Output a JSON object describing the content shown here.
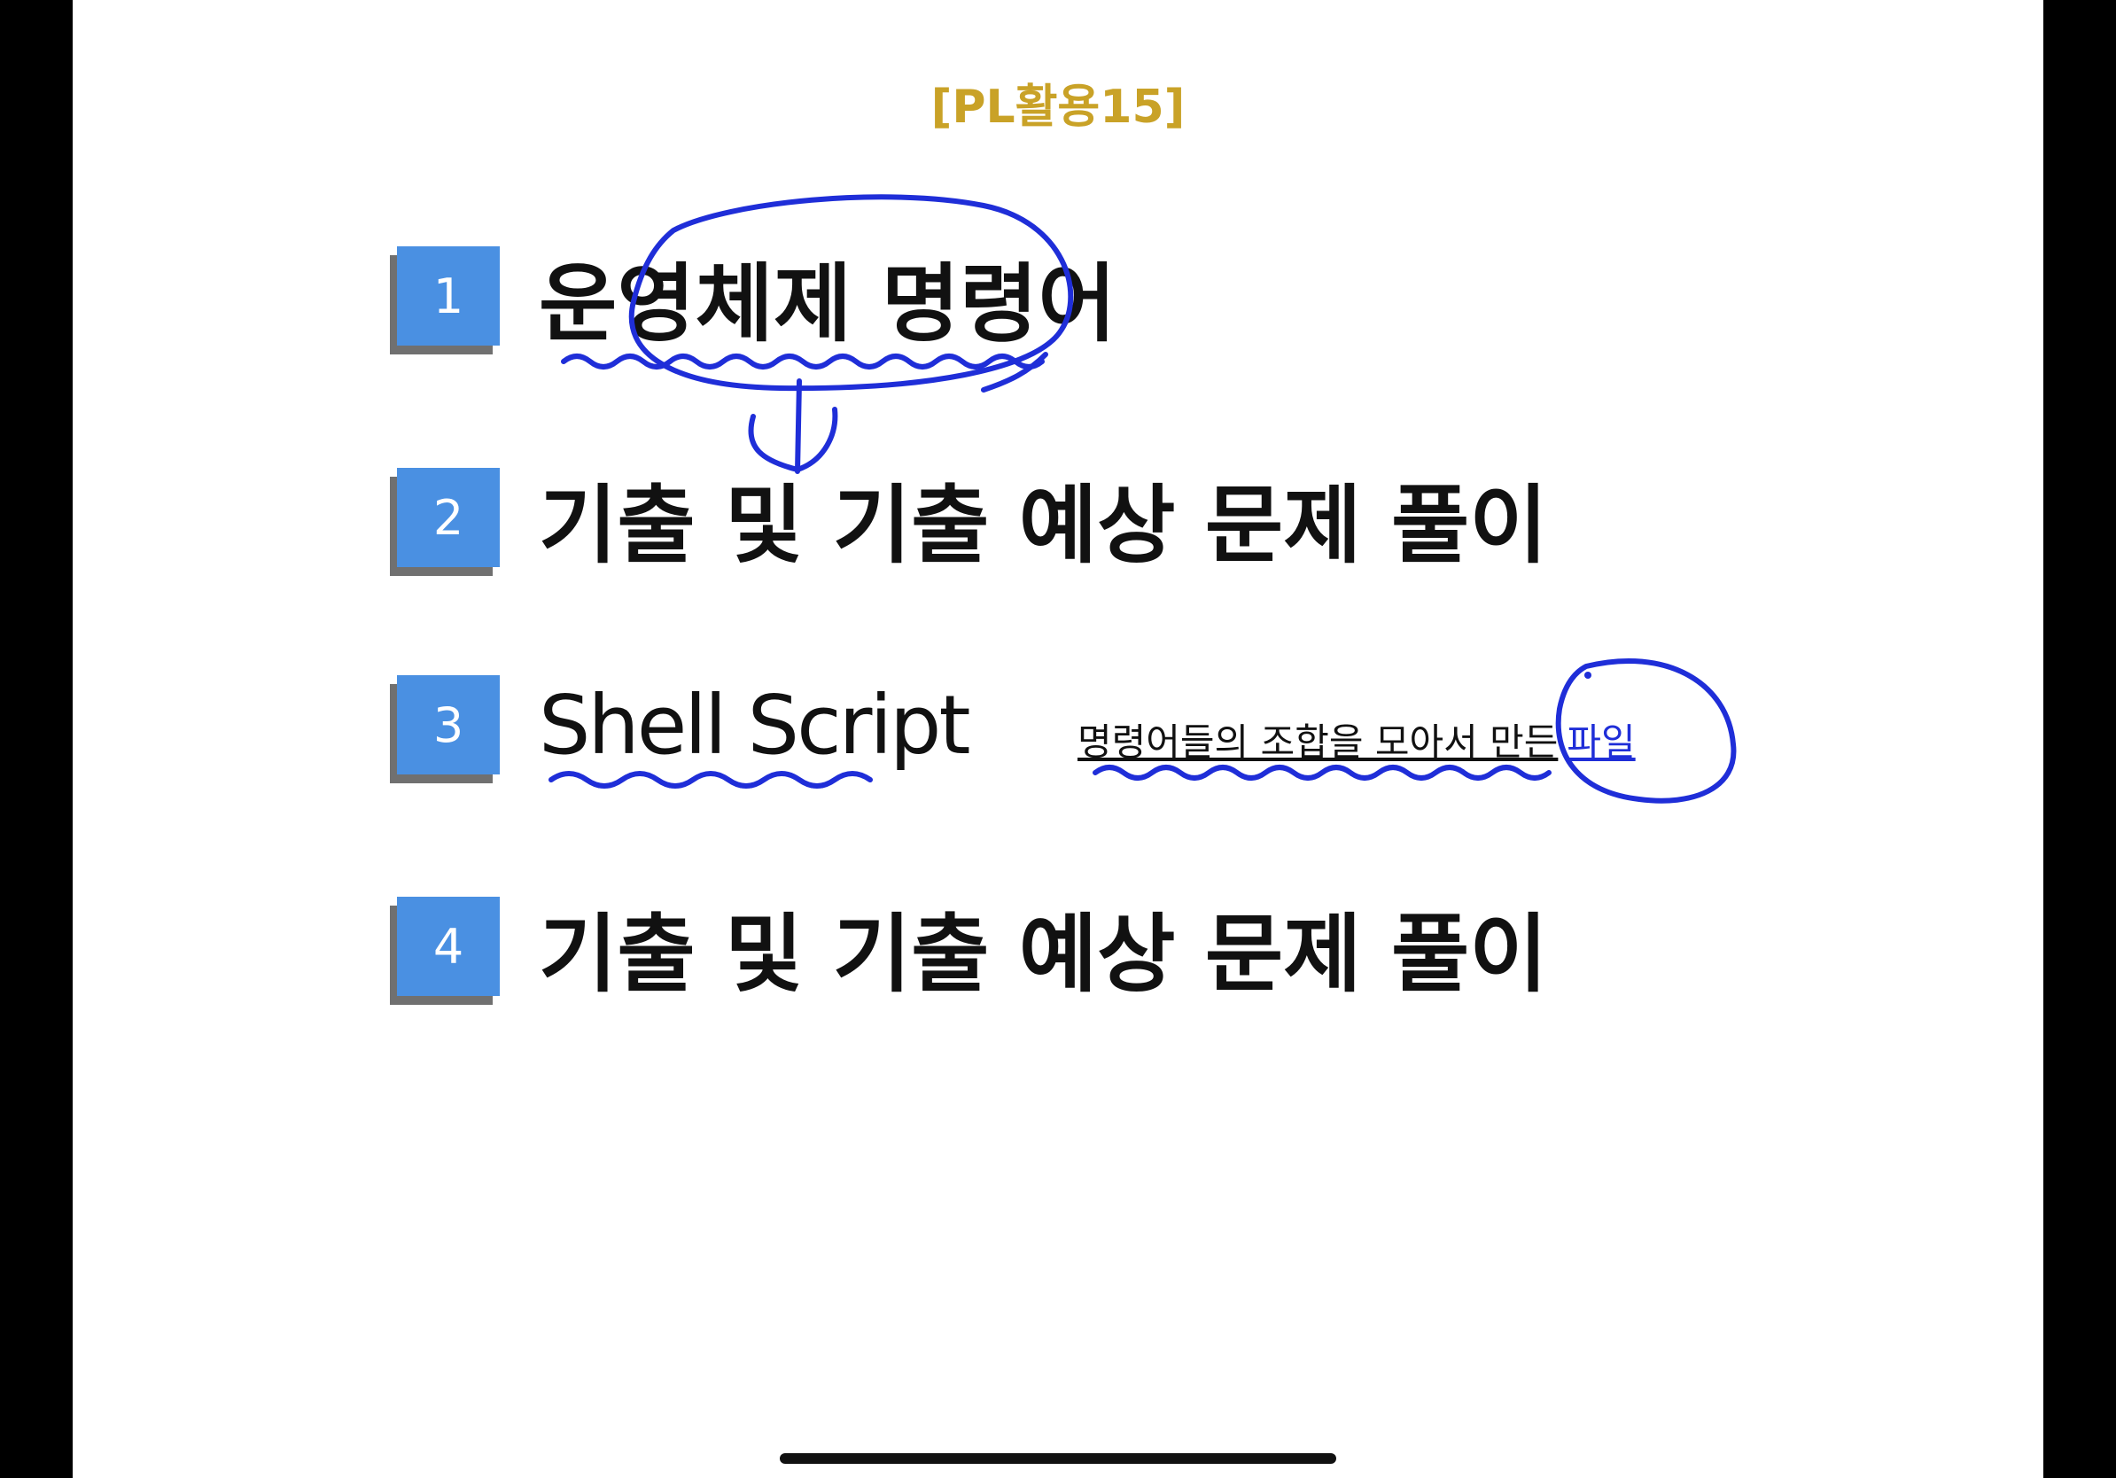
{
  "header": {
    "title": "[PL활용15]"
  },
  "items": [
    {
      "number": "1",
      "text": "운영체제 명령어"
    },
    {
      "number": "2",
      "text": "기출 및 기출 예상 문제 풀이"
    },
    {
      "number": "3",
      "text": "Shell Script"
    },
    {
      "number": "4",
      "text": "기출 및 기출 예상 문제 풀이"
    }
  ],
  "note": {
    "main": "명령어들의 조합을 모아서 만든",
    "link": "파일"
  },
  "colors": {
    "header": "#c9a227",
    "badge": "#4a90e2",
    "badge_shadow": "#707070",
    "ink": "#1f2ed8"
  }
}
